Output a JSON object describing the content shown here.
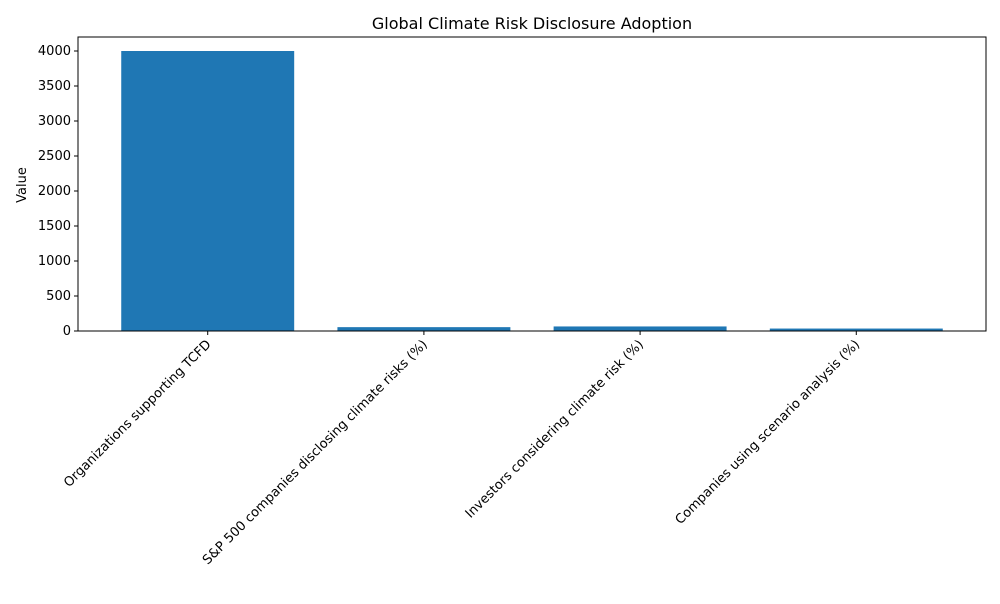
{
  "chart_data": {
    "type": "bar",
    "title": "Global Climate Risk Disclosure Adoption",
    "xlabel": "",
    "ylabel": "Value",
    "categories": [
      "Organizations supporting TCFD",
      "S&P 500 companies disclosing climate risks (%)",
      "Investors considering climate risk (%)",
      "Companies using scenario analysis (%)"
    ],
    "values": [
      4000,
      55,
      65,
      35
    ],
    "ylim": [
      0,
      4200
    ],
    "yticks": [
      "0",
      "500",
      "1000",
      "1500",
      "2000",
      "2500",
      "3000",
      "3500",
      "4000"
    ],
    "bar_color": "#1f77b4",
    "grid": false,
    "legend": "none"
  }
}
